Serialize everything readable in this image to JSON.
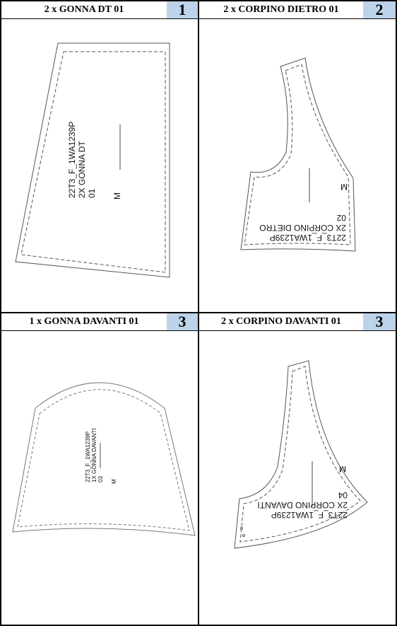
{
  "panels": [
    {
      "title": "2 x GONNA DT 01",
      "number": "1",
      "label_lines": [
        "22T3_F_1WA1239P",
        "2X GONNA DT",
        "01"
      ],
      "size": "M"
    },
    {
      "title": "2 x CORPINO DIETRO 01",
      "number": "2",
      "label_lines": [
        "22T3_F_1WA1239P",
        "2X CORPINO DIETRO",
        "02"
      ],
      "size": "M"
    },
    {
      "title": "1 x GONNA DAVANTI 01",
      "number": "3",
      "label_lines": [
        "22T3_F_1WA1239P",
        "1X GONNA DAVANTI",
        "03"
      ],
      "size": "M"
    },
    {
      "title": "2 x CORPINO DAVANTI 01",
      "number": "3",
      "label_lines": [
        "22T3_F_1WA1239P",
        "2X CORPINO DAVANTI",
        "04"
      ],
      "size": "M"
    }
  ]
}
